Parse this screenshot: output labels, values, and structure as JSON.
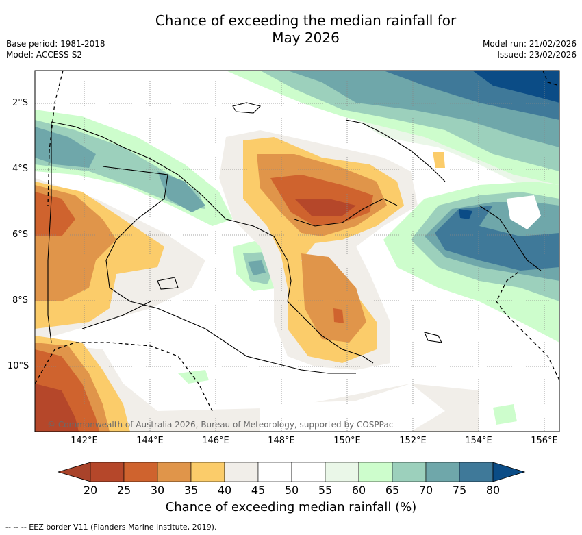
{
  "title_line1": "Chance of exceeding the median rainfall for",
  "title_line2": "May 2026",
  "base_period": "Base period: 1981-2018",
  "model": "Model: ACCESS-S2",
  "model_run": "Model run: 21/02/2026",
  "issued": "Issued: 23/02/2026",
  "lon_ticks": [
    "142°E",
    "144°E",
    "146°E",
    "148°E",
    "150°E",
    "152°E",
    "154°E",
    "156°E"
  ],
  "lat_ticks": [
    "2°S",
    "4°S",
    "6°S",
    "8°S",
    "10°S"
  ],
  "copyright": "© Commonwealth of Australia 2026, Bureau of Meteorology, supported by COSPPac",
  "colorbar": {
    "labels": [
      "20",
      "25",
      "30",
      "35",
      "40",
      "45",
      "50",
      "55",
      "60",
      "65",
      "70",
      "75",
      "80"
    ],
    "colors": [
      "#b5472a",
      "#cf632e",
      "#e0954a",
      "#fbcc6a",
      "#f1eee9",
      "#ffffff",
      "#ffffff",
      "#eaf7e8",
      "#cdfdcc",
      "#9cd0bc",
      "#6fa7aa",
      "#3f7999"
    ],
    "below_color": "#a9432a",
    "above_color": "#0b4c86",
    "title": "Chance of exceeding median rainfall (%)"
  },
  "footer": "-- -- -- EEZ border V11 (Flanders Marine Institute, 2019)."
}
